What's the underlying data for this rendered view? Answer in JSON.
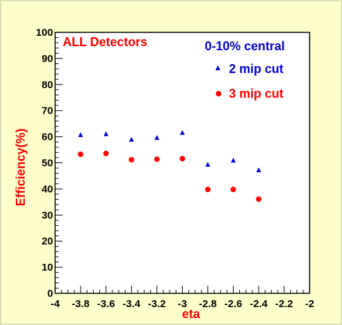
{
  "chart_data": {
    "type": "scatter",
    "title": "ALL Detectors",
    "subtitle": "0-10% central",
    "xlabel": "eta",
    "ylabel": "Efficiency(%)",
    "xlim": [
      -4,
      -2
    ],
    "ylim": [
      0,
      100
    ],
    "x_ticks": [
      "-4",
      "-3.8",
      "-3.6",
      "-3.4",
      "-3.2",
      "-3",
      "-2.8",
      "-2.6",
      "-2.4",
      "-2.2",
      "-2"
    ],
    "y_ticks": [
      "0",
      "10",
      "20",
      "30",
      "40",
      "50",
      "60",
      "70",
      "80",
      "90",
      "100"
    ],
    "grid": false,
    "legend_position": "top-right",
    "series": [
      {
        "name": "2 mip cut",
        "marker": "triangle",
        "color": "#0000cc",
        "x": [
          -3.8,
          -3.6,
          -3.4,
          -3.2,
          -3.0,
          -2.8,
          -2.6,
          -2.4
        ],
        "y": [
          60.7,
          61.0,
          58.9,
          59.6,
          61.5,
          49.3,
          50.9,
          47.2
        ]
      },
      {
        "name": "3 mip cut",
        "marker": "circle",
        "color": "#ff0000",
        "x": [
          -3.8,
          -3.6,
          -3.4,
          -3.2,
          -3.0,
          -2.8,
          -2.6,
          -2.4
        ],
        "y": [
          53.3,
          53.6,
          51.2,
          51.4,
          51.6,
          39.8,
          39.8,
          36.1
        ]
      }
    ]
  }
}
